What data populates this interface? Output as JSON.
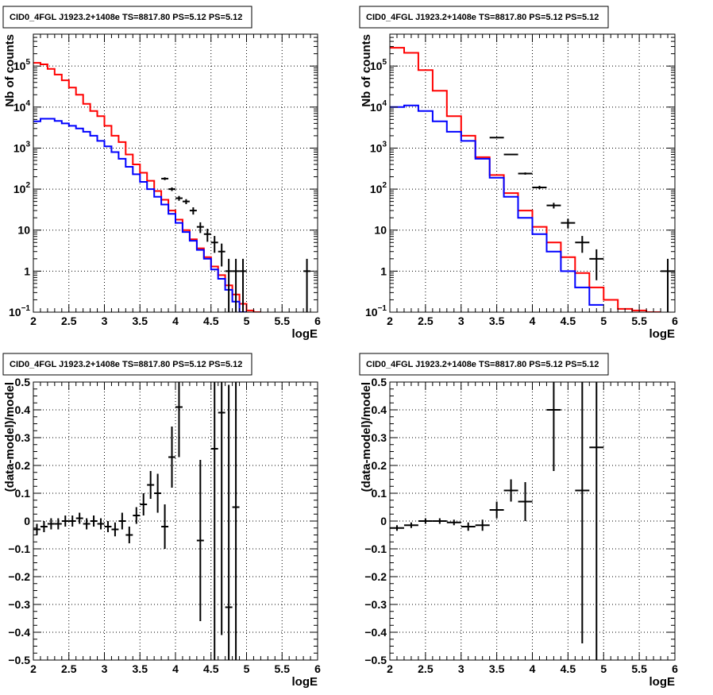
{
  "chart_data": [
    {
      "type": "line",
      "title": "CID0_4FGL J1923.2+1408e TS=8817.80 PS=5.12 PS=5.12",
      "xlabel": "logE",
      "ylabel": "Nb of counts",
      "xscale": "linear",
      "yscale": "log",
      "xlim": [
        2,
        6
      ],
      "ylim": [
        0.1,
        600000
      ],
      "grid": true,
      "xticks": [
        "2",
        "2.5",
        "3",
        "3.5",
        "4",
        "4.5",
        "5",
        "5.5",
        "6"
      ],
      "yticks": [
        {
          "v": 0.1,
          "t": "10",
          "sup": "−1"
        },
        {
          "v": 1,
          "t": "1",
          "sup": ""
        },
        {
          "v": 10,
          "t": "10",
          "sup": ""
        },
        {
          "v": 100,
          "t": "10",
          "sup": "2"
        },
        {
          "v": 1000,
          "t": "10",
          "sup": "3"
        },
        {
          "v": 10000,
          "t": "10",
          "sup": "4"
        },
        {
          "v": 100000,
          "t": "10",
          "sup": "5"
        }
      ],
      "bin_width": 0.1,
      "series": [
        {
          "kind": "hist",
          "color": "#ff0000",
          "bins_start": 2.0,
          "values": [
            120000,
            110000,
            85000,
            62000,
            45000,
            30000,
            20000,
            12000,
            8000,
            6000,
            3500,
            2000,
            1400,
            700,
            400,
            250,
            160,
            90,
            55,
            30,
            18,
            10,
            6,
            3.6,
            2.2,
            1.3,
            0.8,
            0.45,
            0.27,
            0.16,
            0.11,
            0.1
          ]
        },
        {
          "kind": "hist",
          "color": "#0000ff",
          "bins_start": 2.0,
          "values": [
            4500,
            5200,
            5200,
            4600,
            4000,
            3500,
            3000,
            2500,
            2000,
            1500,
            1100,
            800,
            550,
            350,
            230,
            150,
            100,
            65,
            42,
            25,
            15,
            9,
            5.5,
            3.3,
            2,
            1.1,
            0.65,
            0.35,
            0.18,
            0.1
          ]
        },
        {
          "kind": "points",
          "color": "#000000",
          "x": [
            3.85,
            3.95,
            4.05,
            4.15,
            4.25,
            4.35,
            4.45,
            4.55,
            4.65,
            4.75,
            4.85,
            4.95,
            5.85
          ],
          "y": [
            180,
            100,
            60,
            50,
            30,
            12,
            8,
            5,
            3,
            1,
            1,
            1,
            1
          ],
          "yerr": [
            14,
            10,
            8,
            7,
            6,
            3.5,
            2.8,
            2.2,
            1.7,
            1,
            1,
            1,
            1
          ]
        }
      ]
    },
    {
      "type": "line",
      "title": "CID0_4FGL J1923.2+1408e TS=8817.80 PS=5.12 PS=5.12",
      "xlabel": "logE",
      "ylabel": "Nb of counts",
      "xscale": "linear",
      "yscale": "log",
      "xlim": [
        2,
        6
      ],
      "ylim": [
        0.1,
        600000
      ],
      "grid": true,
      "xticks": [
        "2",
        "2.5",
        "3",
        "3.5",
        "4",
        "4.5",
        "5",
        "5.5",
        "6"
      ],
      "yticks": [
        {
          "v": 0.1,
          "t": "10",
          "sup": "−1"
        },
        {
          "v": 1,
          "t": "1",
          "sup": ""
        },
        {
          "v": 10,
          "t": "10",
          "sup": ""
        },
        {
          "v": 100,
          "t": "10",
          "sup": "2"
        },
        {
          "v": 1000,
          "t": "10",
          "sup": "3"
        },
        {
          "v": 10000,
          "t": "10",
          "sup": "4"
        },
        {
          "v": 100000,
          "t": "10",
          "sup": "5"
        }
      ],
      "bin_width": 0.2,
      "series": [
        {
          "kind": "hist",
          "color": "#ff0000",
          "bins_start": 2.0,
          "values": [
            280000,
            210000,
            80000,
            25000,
            6000,
            2000,
            600,
            220,
            80,
            30,
            12,
            5,
            2.2,
            0.9,
            0.4,
            0.2,
            0.12,
            0.11,
            0.1
          ]
        },
        {
          "kind": "hist",
          "color": "#0000ff",
          "bins_start": 2.0,
          "values": [
            10000,
            11000,
            8000,
            4500,
            2500,
            1500,
            550,
            190,
            65,
            20,
            8,
            3,
            1,
            0.4,
            0.15
          ]
        },
        {
          "kind": "points",
          "color": "#000000",
          "x": [
            3.5,
            3.7,
            3.9,
            4.1,
            4.3,
            4.5,
            4.7,
            4.9,
            5.9
          ],
          "y": [
            1800,
            700,
            240,
            110,
            40,
            15,
            5,
            2,
            1
          ],
          "yerr": [
            42,
            26,
            15,
            10.5,
            6.3,
            3.9,
            2.2,
            1.4,
            1
          ]
        }
      ]
    },
    {
      "type": "scatter",
      "title": "CID0_4FGL J1923.2+1408e TS=8817.80 PS=5.12 PS=5.12",
      "xlabel": "logE",
      "ylabel": "(data-model)/model",
      "xscale": "linear",
      "yscale": "linear",
      "xlim": [
        2,
        6
      ],
      "ylim": [
        -0.5,
        0.5
      ],
      "grid": true,
      "xticks": [
        "2",
        "2.5",
        "3",
        "3.5",
        "4",
        "4.5",
        "5",
        "5.5",
        "6"
      ],
      "yticks": [
        {
          "v": -0.5,
          "t": "−0.5",
          "sup": ""
        },
        {
          "v": -0.4,
          "t": "−0.4",
          "sup": ""
        },
        {
          "v": -0.3,
          "t": "−0.3",
          "sup": ""
        },
        {
          "v": -0.2,
          "t": "−0.2",
          "sup": ""
        },
        {
          "v": -0.1,
          "t": "−0.1",
          "sup": ""
        },
        {
          "v": 0,
          "t": "0",
          "sup": ""
        },
        {
          "v": 0.1,
          "t": "0.1",
          "sup": ""
        },
        {
          "v": 0.2,
          "t": "0.2",
          "sup": ""
        },
        {
          "v": 0.3,
          "t": "0.3",
          "sup": ""
        },
        {
          "v": 0.4,
          "t": "0.4",
          "sup": ""
        },
        {
          "v": 0.5,
          "t": "0.5",
          "sup": ""
        }
      ],
      "bin_width": 0.1,
      "series": [
        {
          "kind": "points",
          "color": "#000000",
          "x": [
            2.05,
            2.15,
            2.25,
            2.35,
            2.45,
            2.55,
            2.65,
            2.75,
            2.85,
            2.95,
            3.05,
            3.15,
            3.25,
            3.35,
            3.45,
            3.55,
            3.65,
            3.75,
            3.85,
            3.95,
            4.05,
            4.35,
            4.55,
            4.65,
            4.75,
            4.85
          ],
          "y": [
            -0.03,
            -0.02,
            -0.01,
            -0.01,
            0.0,
            0.0,
            0.01,
            -0.01,
            0.0,
            -0.01,
            -0.02,
            -0.03,
            0.0,
            -0.05,
            0.02,
            0.06,
            0.13,
            0.1,
            -0.02,
            0.23,
            0.41,
            -0.07,
            0.26,
            0.39,
            -0.31,
            0.05
          ],
          "yerr": [
            0.02,
            0.02,
            0.02,
            0.02,
            0.02,
            0.02,
            0.02,
            0.02,
            0.02,
            0.02,
            0.02,
            0.025,
            0.03,
            0.03,
            0.03,
            0.04,
            0.05,
            0.07,
            0.08,
            0.11,
            0.18,
            0.29,
            0.8,
            0.8,
            0.8,
            0.8
          ]
        }
      ]
    },
    {
      "type": "scatter",
      "title": "CID0_4FGL J1923.2+1408e TS=8817.80 PS=5.12 PS=5.12",
      "xlabel": "logE",
      "ylabel": "(data-model)/model",
      "xscale": "linear",
      "yscale": "linear",
      "xlim": [
        2,
        6
      ],
      "ylim": [
        -0.5,
        0.5
      ],
      "grid": true,
      "xticks": [
        "2",
        "2.5",
        "3",
        "3.5",
        "4",
        "4.5",
        "5",
        "5.5",
        "6"
      ],
      "yticks": [
        {
          "v": -0.5,
          "t": "−0.5",
          "sup": ""
        },
        {
          "v": -0.4,
          "t": "−0.4",
          "sup": ""
        },
        {
          "v": -0.3,
          "t": "−0.3",
          "sup": ""
        },
        {
          "v": -0.2,
          "t": "−0.2",
          "sup": ""
        },
        {
          "v": -0.1,
          "t": "−0.1",
          "sup": ""
        },
        {
          "v": 0,
          "t": "0",
          "sup": ""
        },
        {
          "v": 0.1,
          "t": "0.1",
          "sup": ""
        },
        {
          "v": 0.2,
          "t": "0.2",
          "sup": ""
        },
        {
          "v": 0.3,
          "t": "0.3",
          "sup": ""
        },
        {
          "v": 0.4,
          "t": "0.4",
          "sup": ""
        },
        {
          "v": 0.5,
          "t": "0.5",
          "sup": ""
        }
      ],
      "bin_width": 0.2,
      "series": [
        {
          "kind": "points",
          "color": "#000000",
          "x": [
            2.1,
            2.3,
            2.5,
            2.7,
            2.9,
            3.1,
            3.3,
            3.5,
            3.7,
            3.9,
            4.3,
            4.7,
            4.9
          ],
          "y": [
            -0.025,
            -0.015,
            0.0,
            0.0,
            -0.005,
            -0.02,
            -0.015,
            0.04,
            0.11,
            0.07,
            0.4,
            0.11,
            0.265
          ],
          "yerr": [
            0.01,
            0.01,
            0.01,
            0.01,
            0.01,
            0.015,
            0.02,
            0.03,
            0.04,
            0.07,
            0.22,
            0.55,
            0.8
          ]
        }
      ]
    }
  ]
}
